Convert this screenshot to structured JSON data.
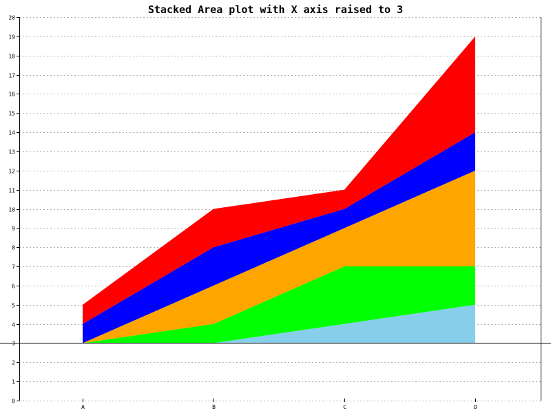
{
  "chart_data": {
    "type": "area",
    "stacked": true,
    "title": "Stacked Area plot with X axis raised to 3",
    "xlabel": "",
    "ylabel": "",
    "categories": [
      "A",
      "B",
      "C",
      "D"
    ],
    "baseline": 3,
    "ylim": [
      0,
      20
    ],
    "yticks": [
      "0",
      "1",
      "2",
      "3",
      "4",
      "5",
      "6",
      "7",
      "8",
      "9",
      "10",
      "11",
      "12",
      "13",
      "14",
      "15",
      "16",
      "17",
      "18",
      "19",
      "20"
    ],
    "grid": {
      "horizontal": true,
      "style": "dotted"
    },
    "legend": "none",
    "series": [
      {
        "values": [
          0,
          0,
          1,
          2
        ],
        "color": "#87CEEB"
      },
      {
        "values": [
          0,
          1,
          3,
          2
        ],
        "color": "#00FF00"
      },
      {
        "values": [
          0,
          2,
          2,
          5
        ],
        "color": "#FFA500"
      },
      {
        "values": [
          1,
          2,
          1,
          2
        ],
        "color": "#0000FF"
      },
      {
        "values": [
          1,
          2,
          1,
          5
        ],
        "color": "#FF0000"
      }
    ],
    "colors": {
      "grid": "#b0b0b0",
      "axis": "#000000",
      "background": "#ffffff"
    }
  }
}
